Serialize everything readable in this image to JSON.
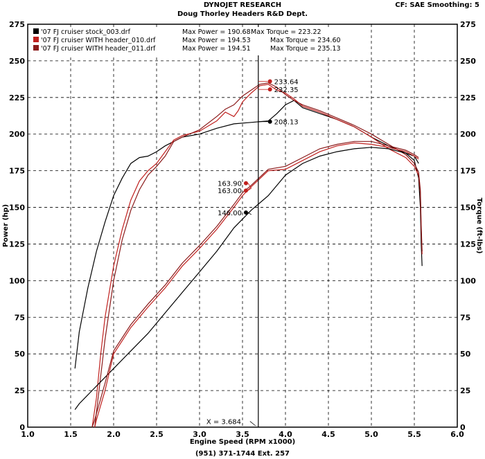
{
  "header": {
    "title": "DYNOJET RESEARCH",
    "subtitle": "Doug Thorley Headers R&D Dept.",
    "settings": "CF: SAE   Smoothing: 5"
  },
  "footer": {
    "phone": "(951) 371-1744 Ext. 257"
  },
  "colors": {
    "stock": "#000000",
    "header010": "#c0201e",
    "header011": "#8a1a1a"
  },
  "chart_data": {
    "type": "line",
    "xlabel": "Engine Speed (RPM x1000)",
    "ylabel_left": "Power (hp)",
    "ylabel_right": "Torque (ft-lbs)",
    "xlim": [
      1.0,
      6.0
    ],
    "ylim": [
      0,
      275
    ],
    "x_ticks": [
      "1.0",
      "1.5",
      "2.0",
      "2.5",
      "3.0",
      "3.5",
      "4.0",
      "4.5",
      "5.0",
      "5.5",
      "6.0"
    ],
    "y_ticks_left": [
      "0",
      "25",
      "50",
      "75",
      "100",
      "125",
      "150",
      "175",
      "200",
      "225",
      "250",
      "275"
    ],
    "y_ticks_right": [
      "0",
      "25",
      "50",
      "75",
      "100",
      "125",
      "150",
      "175",
      "200",
      "225",
      "250",
      "275"
    ],
    "grid": true,
    "legend_position": "top-left",
    "legend": [
      {
        "file": "'07 FJ cruiser stock_003.drf",
        "power": "Max Power = 190.68",
        "torque": "Max Torque = 223.22",
        "color": "#000000"
      },
      {
        "file": "'07 FJ cruiser WITH header_010.drf",
        "power": "Max Power = 194.53",
        "torque": "Max Torque = 234.60",
        "color": "#c0201e"
      },
      {
        "file": "'07 FJ cruiser WITH header_011.drf",
        "power": "Max Power = 194.51",
        "torque": "Max Torque = 235.13",
        "color": "#8a1a1a"
      }
    ],
    "cursor": {
      "x": 3.684,
      "label": "X = 3.684"
    },
    "cursor_values": [
      {
        "label": "233.64",
        "x": 3.82,
        "y": 236,
        "color": "#c0201e"
      },
      {
        "label": "232.35",
        "x": 3.82,
        "y": 230.5,
        "color": "#c0201e"
      },
      {
        "label": "208.13",
        "x": 3.82,
        "y": 208.5,
        "color": "#000000"
      },
      {
        "label": "163.90",
        "x": 3.54,
        "y": 166.5,
        "color": "#c0201e"
      },
      {
        "label": "163.00",
        "x": 3.54,
        "y": 161.5,
        "color": "#c0201e"
      },
      {
        "label": "146.00",
        "x": 3.54,
        "y": 146.5,
        "color": "#000000"
      }
    ],
    "series": [
      {
        "name": "stock torque",
        "color": "#000000",
        "points": [
          [
            1.55,
            40
          ],
          [
            1.6,
            65
          ],
          [
            1.7,
            95
          ],
          [
            1.8,
            120
          ],
          [
            1.9,
            140
          ],
          [
            2.0,
            158
          ],
          [
            2.1,
            170
          ],
          [
            2.2,
            180
          ],
          [
            2.3,
            184
          ],
          [
            2.4,
            185
          ],
          [
            2.5,
            188
          ],
          [
            2.6,
            192
          ],
          [
            2.8,
            198
          ],
          [
            3.0,
            200
          ],
          [
            3.2,
            204
          ],
          [
            3.4,
            207
          ],
          [
            3.6,
            208
          ],
          [
            3.8,
            209
          ],
          [
            3.9,
            214
          ],
          [
            4.0,
            220
          ],
          [
            4.1,
            223
          ],
          [
            4.2,
            218
          ],
          [
            4.4,
            214
          ],
          [
            4.6,
            210
          ],
          [
            4.8,
            205
          ],
          [
            5.0,
            198
          ],
          [
            5.2,
            192
          ],
          [
            5.4,
            187
          ],
          [
            5.5,
            182
          ],
          [
            5.55,
            170
          ],
          [
            5.57,
            150
          ],
          [
            5.58,
            125
          ],
          [
            5.59,
            110
          ]
        ]
      },
      {
        "name": "header_010 torque",
        "color": "#c0201e",
        "points": [
          [
            1.75,
            0
          ],
          [
            1.8,
            20
          ],
          [
            1.85,
            50
          ],
          [
            1.9,
            75
          ],
          [
            2.0,
            110
          ],
          [
            2.1,
            135
          ],
          [
            2.2,
            155
          ],
          [
            2.3,
            168
          ],
          [
            2.4,
            175
          ],
          [
            2.5,
            180
          ],
          [
            2.6,
            188
          ],
          [
            2.7,
            196
          ],
          [
            2.8,
            199
          ],
          [
            3.0,
            202
          ],
          [
            3.2,
            209
          ],
          [
            3.3,
            215
          ],
          [
            3.4,
            212
          ],
          [
            3.45,
            216
          ],
          [
            3.5,
            222
          ],
          [
            3.6,
            228
          ],
          [
            3.7,
            233
          ],
          [
            3.8,
            234
          ],
          [
            3.9,
            230
          ],
          [
            4.0,
            228
          ],
          [
            4.1,
            224
          ],
          [
            4.2,
            219
          ],
          [
            4.4,
            215
          ],
          [
            4.6,
            210
          ],
          [
            4.8,
            205
          ],
          [
            5.0,
            198
          ],
          [
            5.2,
            190
          ],
          [
            5.4,
            184
          ],
          [
            5.5,
            178
          ],
          [
            5.55,
            172
          ],
          [
            5.57,
            160
          ],
          [
            5.58,
            135
          ],
          [
            5.59,
            118
          ]
        ]
      },
      {
        "name": "header_011 torque",
        "color": "#8a1a1a",
        "points": [
          [
            1.78,
            0
          ],
          [
            1.83,
            25
          ],
          [
            1.9,
            60
          ],
          [
            2.0,
            100
          ],
          [
            2.1,
            128
          ],
          [
            2.2,
            148
          ],
          [
            2.3,
            162
          ],
          [
            2.4,
            172
          ],
          [
            2.5,
            178
          ],
          [
            2.6,
            185
          ],
          [
            2.7,
            195
          ],
          [
            2.8,
            198
          ],
          [
            3.0,
            203
          ],
          [
            3.2,
            212
          ],
          [
            3.3,
            217
          ],
          [
            3.4,
            220
          ],
          [
            3.5,
            226
          ],
          [
            3.6,
            230
          ],
          [
            3.7,
            234
          ],
          [
            3.8,
            235
          ],
          [
            3.9,
            232
          ],
          [
            4.0,
            227
          ],
          [
            4.1,
            223
          ],
          [
            4.2,
            220
          ],
          [
            4.4,
            216
          ],
          [
            4.6,
            211
          ],
          [
            4.8,
            206
          ],
          [
            5.0,
            200
          ],
          [
            5.2,
            193
          ],
          [
            5.4,
            186
          ],
          [
            5.5,
            180
          ],
          [
            5.55,
            174
          ],
          [
            5.57,
            162
          ],
          [
            5.58,
            138
          ],
          [
            5.59,
            120
          ]
        ]
      },
      {
        "name": "stock power",
        "color": "#000000",
        "points": [
          [
            1.55,
            12
          ],
          [
            1.6,
            16
          ],
          [
            1.8,
            28
          ],
          [
            2.0,
            40
          ],
          [
            2.2,
            52
          ],
          [
            2.4,
            64
          ],
          [
            2.6,
            78
          ],
          [
            2.8,
            92
          ],
          [
            3.0,
            106
          ],
          [
            3.2,
            120
          ],
          [
            3.4,
            136
          ],
          [
            3.6,
            148
          ],
          [
            3.8,
            158
          ],
          [
            4.0,
            172
          ],
          [
            4.2,
            180
          ],
          [
            4.4,
            185
          ],
          [
            4.6,
            188
          ],
          [
            4.8,
            190
          ],
          [
            5.0,
            191
          ],
          [
            5.2,
            190
          ],
          [
            5.4,
            187
          ],
          [
            5.5,
            185
          ],
          [
            5.55,
            180
          ]
        ]
      },
      {
        "name": "header_010 power",
        "color": "#c0201e",
        "points": [
          [
            1.78,
            0
          ],
          [
            1.8,
            5
          ],
          [
            1.9,
            25
          ],
          [
            2.0,
            50
          ],
          [
            2.2,
            68
          ],
          [
            2.4,
            82
          ],
          [
            2.6,
            95
          ],
          [
            2.8,
            110
          ],
          [
            3.0,
            122
          ],
          [
            3.2,
            135
          ],
          [
            3.4,
            150
          ],
          [
            3.5,
            158
          ],
          [
            3.6,
            164
          ],
          [
            3.8,
            175
          ],
          [
            4.0,
            176
          ],
          [
            4.2,
            182
          ],
          [
            4.4,
            188
          ],
          [
            4.6,
            192
          ],
          [
            4.8,
            194
          ],
          [
            5.0,
            193
          ],
          [
            5.2,
            191
          ],
          [
            5.4,
            188
          ],
          [
            5.5,
            185
          ],
          [
            5.55,
            183
          ]
        ]
      },
      {
        "name": "header_011 power",
        "color": "#8a1a1a",
        "points": [
          [
            1.75,
            0
          ],
          [
            1.78,
            5
          ],
          [
            1.9,
            30
          ],
          [
            2.0,
            52
          ],
          [
            2.2,
            70
          ],
          [
            2.4,
            84
          ],
          [
            2.6,
            97
          ],
          [
            2.8,
            112
          ],
          [
            3.0,
            124
          ],
          [
            3.2,
            137
          ],
          [
            3.4,
            152
          ],
          [
            3.5,
            160
          ],
          [
            3.6,
            165
          ],
          [
            3.8,
            176
          ],
          [
            4.0,
            178
          ],
          [
            4.2,
            184
          ],
          [
            4.4,
            190
          ],
          [
            4.6,
            193
          ],
          [
            4.8,
            195
          ],
          [
            5.0,
            195
          ],
          [
            5.2,
            192
          ],
          [
            5.4,
            189
          ],
          [
            5.5,
            186
          ],
          [
            5.55,
            184
          ]
        ]
      }
    ]
  }
}
